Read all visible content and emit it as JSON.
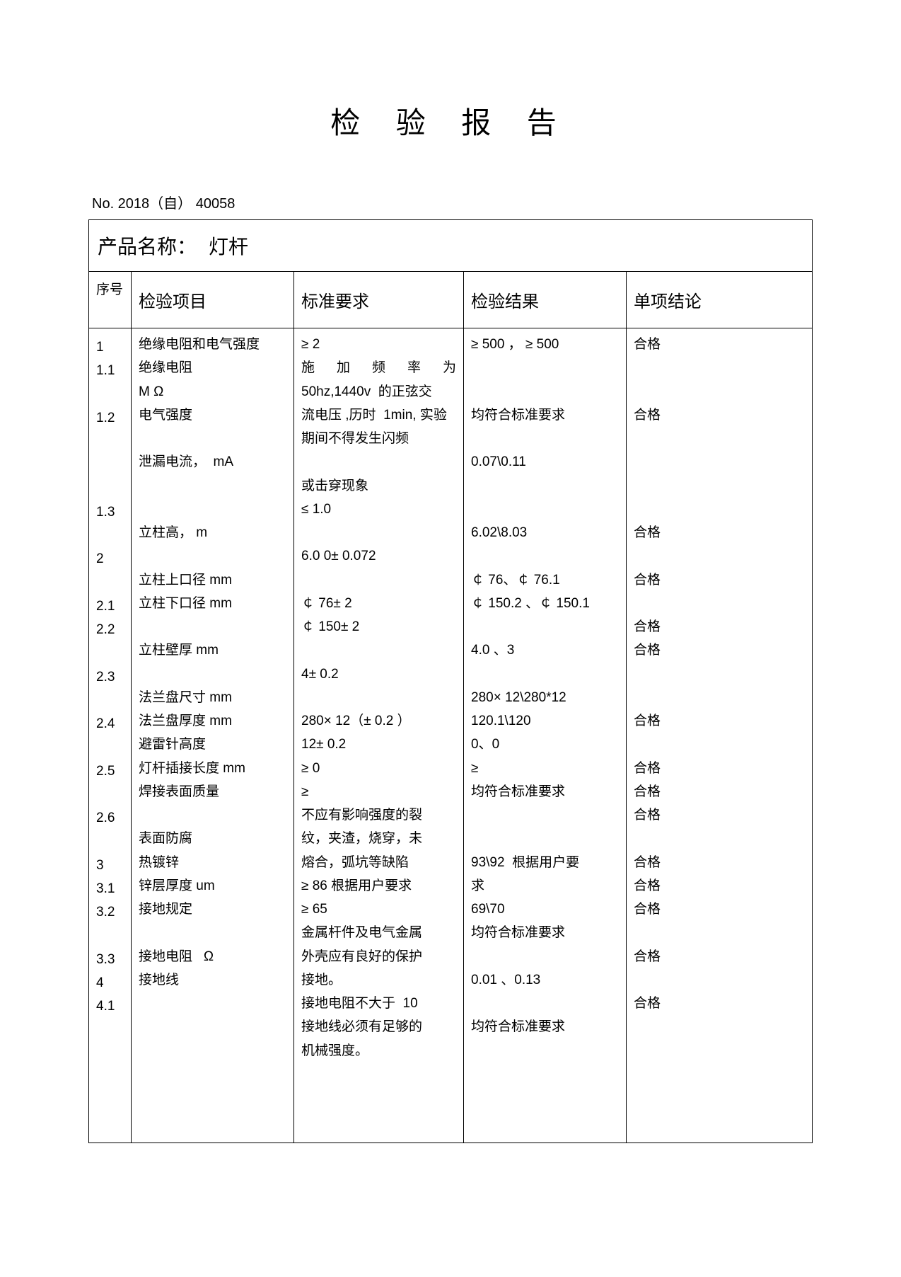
{
  "title": "检 验 报 告",
  "report_no": "No. 2018（自） 40058",
  "product_label": "产品名称：",
  "product_name": "灯杆",
  "columns": {
    "seq": "序号",
    "item": "检验项目",
    "std": "标准要求",
    "result": "检验结果",
    "conc": "单项结论"
  },
  "col_seq": [
    "1",
    "1.1",
    "",
    "1.2",
    "",
    "",
    "",
    "1.3",
    "",
    "2",
    "",
    "2.1",
    "2.2",
    "",
    "2.3",
    "",
    "2.4",
    "",
    "2.5",
    "",
    "2.6",
    "",
    "3",
    "3.1",
    "3.2",
    "",
    "3.3",
    "4",
    "4.1",
    "",
    ""
  ],
  "col_item": [
    "绝缘电阻和电气强度",
    "绝缘电阻",
    "M Ω",
    "电气强度",
    "",
    "泄漏电流，  mA",
    "",
    "",
    "立柱高， m",
    "",
    "立柱上口径 mm",
    "立柱下口径 mm",
    "",
    "立柱壁厚 mm",
    "",
    "法兰盘尺寸 mm",
    "法兰盘厚度 mm",
    "避雷针高度",
    "灯杆插接长度 mm",
    "焊接表面质量",
    "",
    "表面防腐",
    "热镀锌",
    "锌层厚度 um",
    "接地规定",
    "",
    "接地电阻   Ω",
    "接地线",
    "",
    "",
    ""
  ],
  "col_std": [
    "≥ 2",
    {
      "text": "施 加 频 率 为",
      "justify": true
    },
    "50hz,1440v  的正弦交",
    "流电压 ,历时  1min, 实验期间不得发生闪频",
    "",
    "或击穿现象",
    "≤ 1.0",
    "",
    "6.0 0± 0.072",
    "",
    "￠ 76± 2",
    "￠ 150± 2",
    "",
    "4± 0.2",
    "",
    "280× 12（± 0.2 ）",
    "12± 0.2",
    "≥ 0",
    "≥",
    "不应有影响强度的裂",
    "纹，夹渣，烧穿，未",
    "熔合，弧坑等缺陷",
    "≥ 86 根据用户要求",
    "≥ 65",
    "金属杆件及电气金属",
    "外壳应有良好的保护",
    "接地。",
    "接地电阻不大于  10",
    "接地线必须有足够的",
    "机械强度。",
    ""
  ],
  "col_result": [
    "≥ 500 ， ≥ 500",
    "",
    "",
    "均符合标准要求",
    "",
    "0.07\\0.11",
    "",
    "",
    "6.02\\8.03",
    "",
    "￠ 76、￠ 76.1",
    "￠ 150.2 、￠ 150.1",
    "",
    "4.0 、3",
    "",
    "280× 12\\280*12",
    "120.1\\120",
    "0、0",
    "≥",
    "均符合标准要求",
    "",
    "",
    "93\\92  根据用户要",
    "求",
    "69\\70",
    "均符合标准要求",
    "",
    "0.01 、0.13",
    "",
    "均符合标准要求",
    ""
  ],
  "col_conc": [
    "合格",
    "",
    "",
    "合格",
    "",
    "",
    "",
    "",
    "合格",
    "",
    "合格",
    "",
    "合格",
    "合格",
    "",
    "",
    "合格",
    "",
    "合格",
    "合格",
    "合格",
    "",
    "合格",
    "合格",
    "合格",
    "",
    "合格",
    "",
    "合格",
    "",
    ""
  ]
}
